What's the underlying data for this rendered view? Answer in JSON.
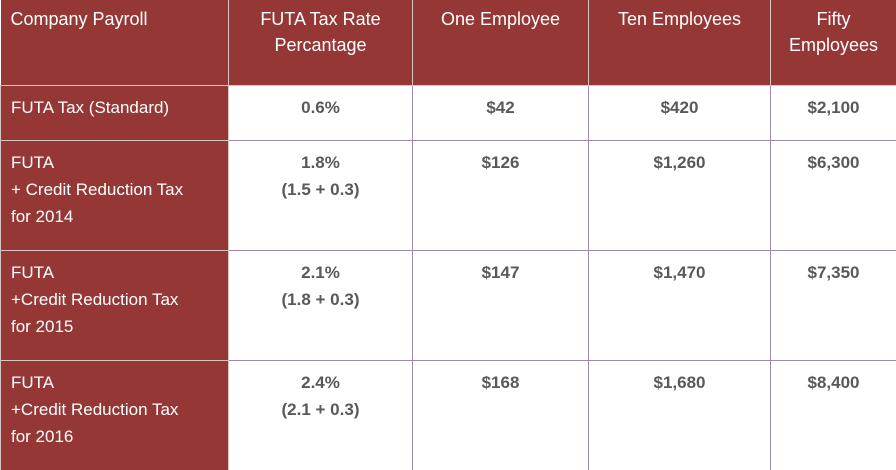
{
  "table": {
    "header": [
      "Company Payroll",
      "FUTA Tax Rate Percantage",
      "One Employee",
      "Ten Employees",
      "Fifty Employees"
    ],
    "rows": [
      [
        [
          "FUTA Tax (Standard)"
        ],
        [
          "0.6%"
        ],
        [
          "$42"
        ],
        [
          "$420"
        ],
        [
          "$2,100"
        ]
      ],
      [
        [
          "FUTA",
          "+ Credit Reduction Tax",
          "for 2014"
        ],
        [
          "1.8%",
          "(1.5 + 0.3)"
        ],
        [
          "$126"
        ],
        [
          "$1,260"
        ],
        [
          "$6,300"
        ]
      ],
      [
        [
          "FUTA",
          "+Credit Reduction Tax",
          "for 2015"
        ],
        [
          "2.1%",
          "(1.8 + 0.3)"
        ],
        [
          "$147"
        ],
        [
          "$1,470"
        ],
        [
          "$7,350"
        ]
      ],
      [
        [
          "FUTA",
          "+Credit Reduction Tax",
          "for 2016"
        ],
        [
          "2.4%",
          "(2.1 + 0.3)"
        ],
        [
          "$168"
        ],
        [
          "$1,680"
        ],
        [
          "$8,400"
        ]
      ]
    ]
  }
}
